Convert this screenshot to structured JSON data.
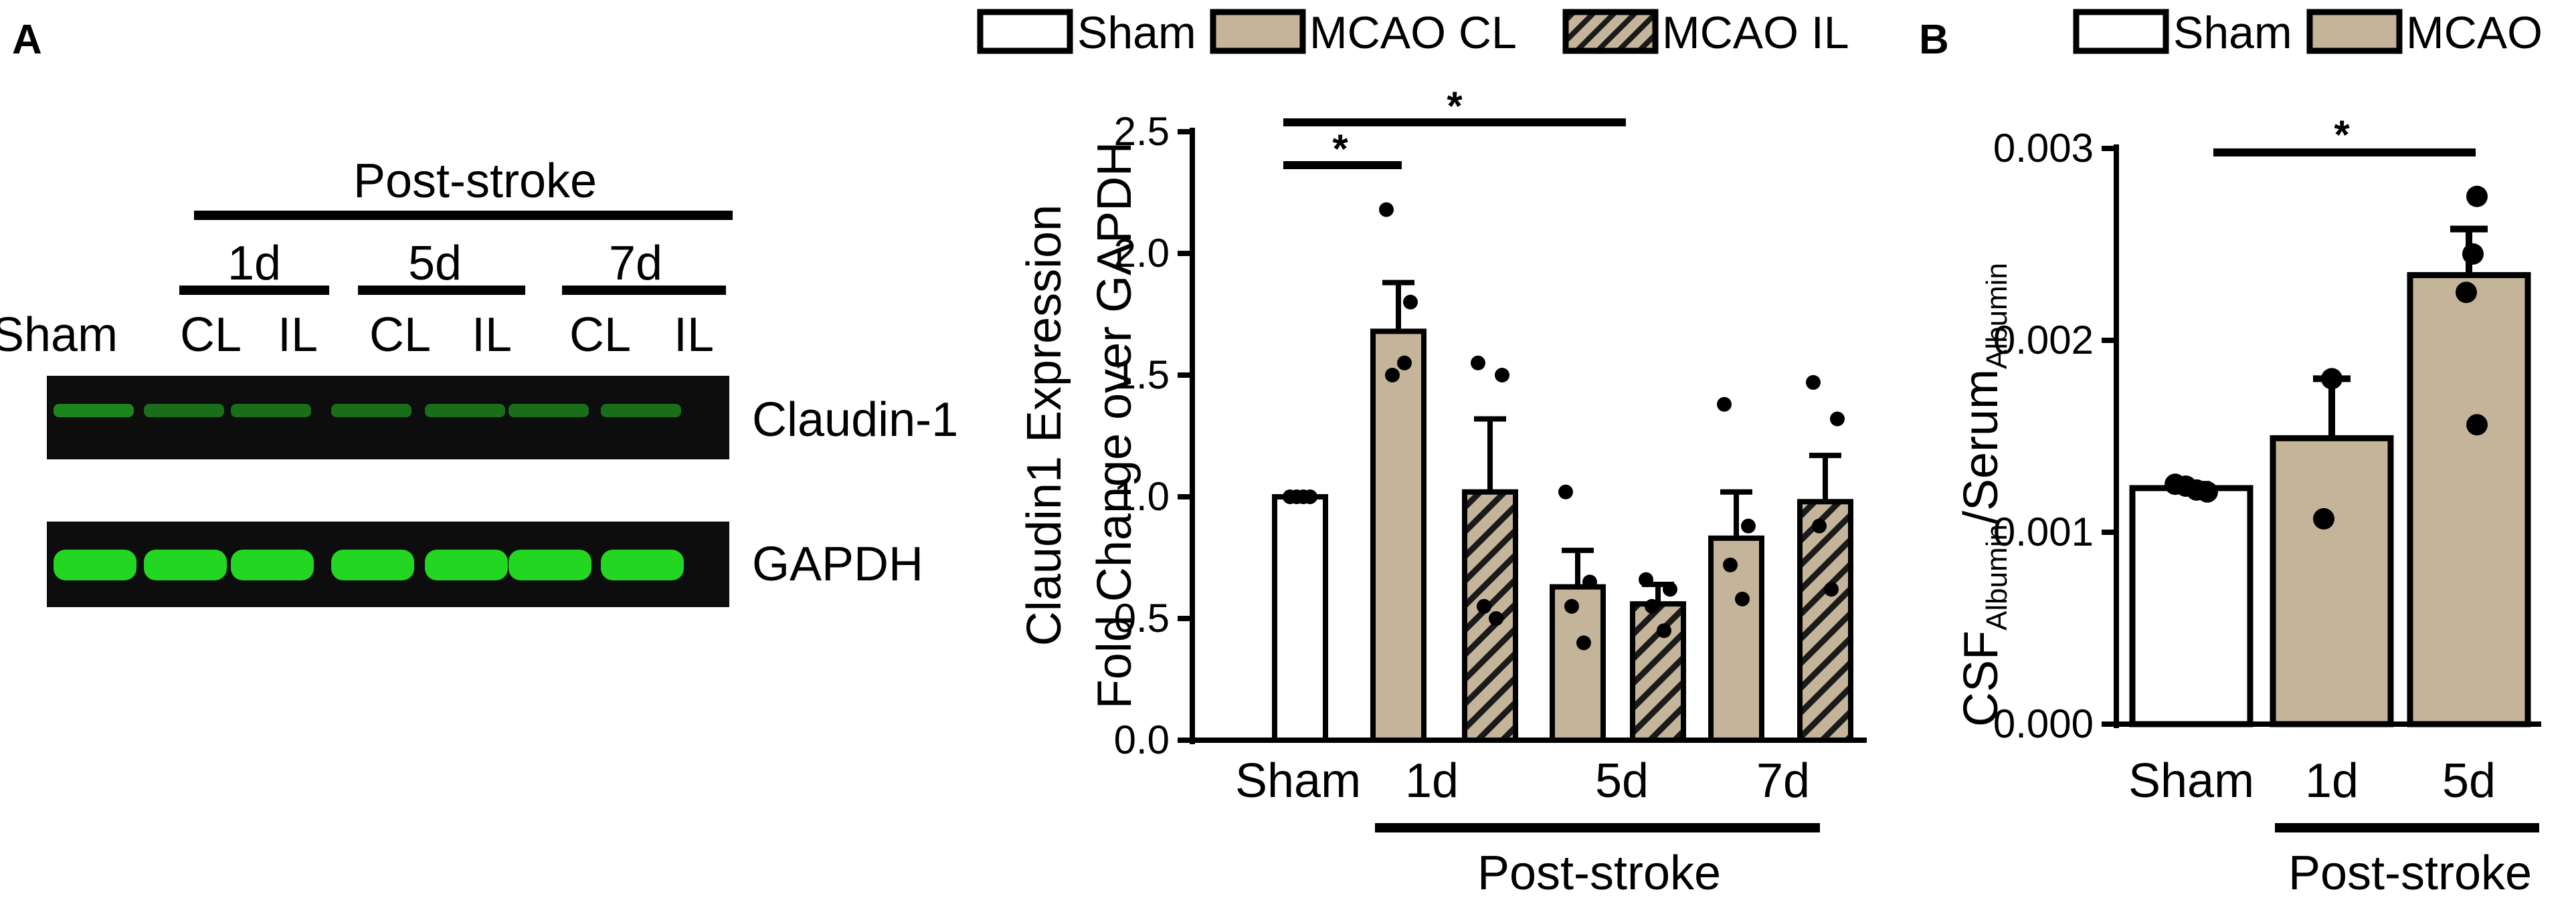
{
  "panels": {
    "a": "A",
    "b": "B"
  },
  "blot": {
    "header": "Post-stroke",
    "timepoints": [
      "1d",
      "5d",
      "7d"
    ],
    "lane_labels": [
      "Sham",
      "CL",
      "IL",
      "CL",
      "IL",
      "CL",
      "IL"
    ],
    "bands": [
      "Claudin-1",
      "GAPDH"
    ],
    "colors": {
      "background": "#0a0a0a",
      "band": "#22d622"
    }
  },
  "chart_data": [
    {
      "type": "bar",
      "panel": "A",
      "ylabel_line1": "Claudin1 Expression",
      "ylabel_line2": "Fold Change over GAPDH",
      "ylim": [
        0,
        2.5
      ],
      "yticks": [
        "0.0",
        "0.5",
        "1.0",
        "1.5",
        "2.0",
        "2.5"
      ],
      "categories": [
        "Sham",
        "1d",
        "5d",
        "7d"
      ],
      "group_label": "Post-stroke",
      "legend": [
        "Sham",
        "MCAO CL",
        "MCAO IL"
      ],
      "colors": {
        "sham": "#ffffff",
        "cl": "#c4b59a",
        "il_hatch": "#c4b59a"
      },
      "bars": [
        {
          "category": "Sham",
          "series": "Sham",
          "value": 1.0,
          "error": 0.0,
          "points": [
            1.0,
            1.0,
            1.0,
            1.0
          ]
        },
        {
          "category": "1d",
          "series": "MCAO CL",
          "value": 1.68,
          "error": 0.2,
          "points": [
            2.18,
            1.8,
            1.5,
            1.55
          ]
        },
        {
          "category": "1d",
          "series": "MCAO IL",
          "value": 1.02,
          "error": 0.3,
          "points": [
            1.55,
            1.5,
            0.55,
            0.5
          ]
        },
        {
          "category": "5d",
          "series": "MCAO CL",
          "value": 0.63,
          "error": 0.15,
          "points": [
            1.02,
            0.65,
            0.55,
            0.4
          ]
        },
        {
          "category": "5d",
          "series": "MCAO IL",
          "value": 0.56,
          "error": 0.08,
          "points": [
            0.66,
            0.62,
            0.55,
            0.45
          ]
        },
        {
          "category": "7d",
          "series": "MCAO CL",
          "value": 0.83,
          "error": 0.19,
          "points": [
            1.38,
            0.88,
            0.72,
            0.58
          ]
        },
        {
          "category": "7d",
          "series": "MCAO IL",
          "value": 0.98,
          "error": 0.19,
          "points": [
            1.47,
            1.32,
            0.88,
            0.62
          ]
        }
      ],
      "significance": [
        {
          "from": "Sham",
          "to": "1d CL",
          "label": "*"
        },
        {
          "from": "Sham",
          "to": "5d IL",
          "label": "*"
        }
      ]
    },
    {
      "type": "bar",
      "panel": "B",
      "ylabel_main1": "CSF",
      "ylabel_sub1": "Albumin",
      "ylabel_main2": "/Serum",
      "ylabel_sub2": "Albumin",
      "ylim": [
        0,
        0.003
      ],
      "yticks": [
        "0.000",
        "0.001",
        "0.002",
        "0.003"
      ],
      "categories": [
        "Sham",
        "1d",
        "5d"
      ],
      "group_label": "Post-stroke",
      "legend": [
        "Sham",
        "MCAO"
      ],
      "colors": {
        "sham": "#ffffff",
        "mcao": "#c4b59a"
      },
      "bars": [
        {
          "category": "Sham",
          "series": "Sham",
          "value": 0.00123,
          "error": 2e-05,
          "points": [
            0.00125,
            0.00124,
            0.00122,
            0.00121
          ]
        },
        {
          "category": "1d",
          "series": "MCAO",
          "value": 0.00149,
          "error": 0.00031,
          "points": [
            0.0018,
            0.00107
          ]
        },
        {
          "category": "5d",
          "series": "MCAO",
          "value": 0.00234,
          "error": 0.00024,
          "points": [
            0.00275,
            0.00245,
            0.00225,
            0.00156
          ]
        }
      ],
      "significance": [
        {
          "from": "Sham",
          "to": "5d",
          "label": "*"
        }
      ]
    }
  ]
}
